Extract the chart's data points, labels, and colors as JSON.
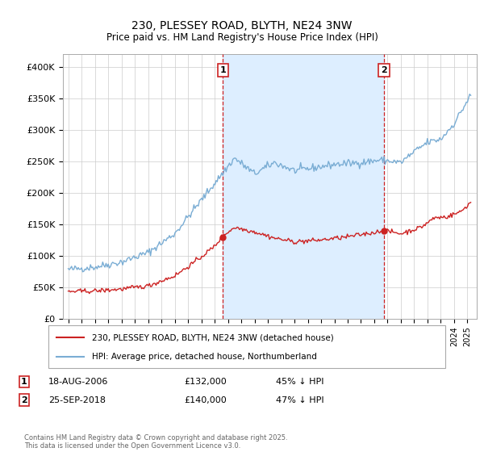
{
  "title": "230, PLESSEY ROAD, BLYTH, NE24 3NW",
  "subtitle": "Price paid vs. HM Land Registry's House Price Index (HPI)",
  "ylim": [
    0,
    420000
  ],
  "yticks": [
    0,
    50000,
    100000,
    150000,
    200000,
    250000,
    300000,
    350000,
    400000
  ],
  "ytick_labels": [
    "£0",
    "£50K",
    "£100K",
    "£150K",
    "£200K",
    "£250K",
    "£300K",
    "£350K",
    "£400K"
  ],
  "hpi_color": "#7aadd4",
  "price_color": "#cc2222",
  "shade_color": "#ddeeff",
  "vline1_x": 2006.63,
  "vline2_x": 2018.73,
  "sale1_price": 132000,
  "sale2_price": 140000,
  "legend_label_price": "230, PLESSEY ROAD, BLYTH, NE24 3NW (detached house)",
  "legend_label_hpi": "HPI: Average price, detached house, Northumberland",
  "date1": "18-AUG-2006",
  "price1_str": "£132,000",
  "pct1_str": "45% ↓ HPI",
  "date2": "25-SEP-2018",
  "price2_str": "£140,000",
  "pct2_str": "47% ↓ HPI",
  "footer": "Contains HM Land Registry data © Crown copyright and database right 2025.\nThis data is licensed under the Open Government Licence v3.0.",
  "background_color": "#ffffff",
  "grid_color": "#cccccc",
  "xlim_left": 1994.6,
  "xlim_right": 2025.7
}
